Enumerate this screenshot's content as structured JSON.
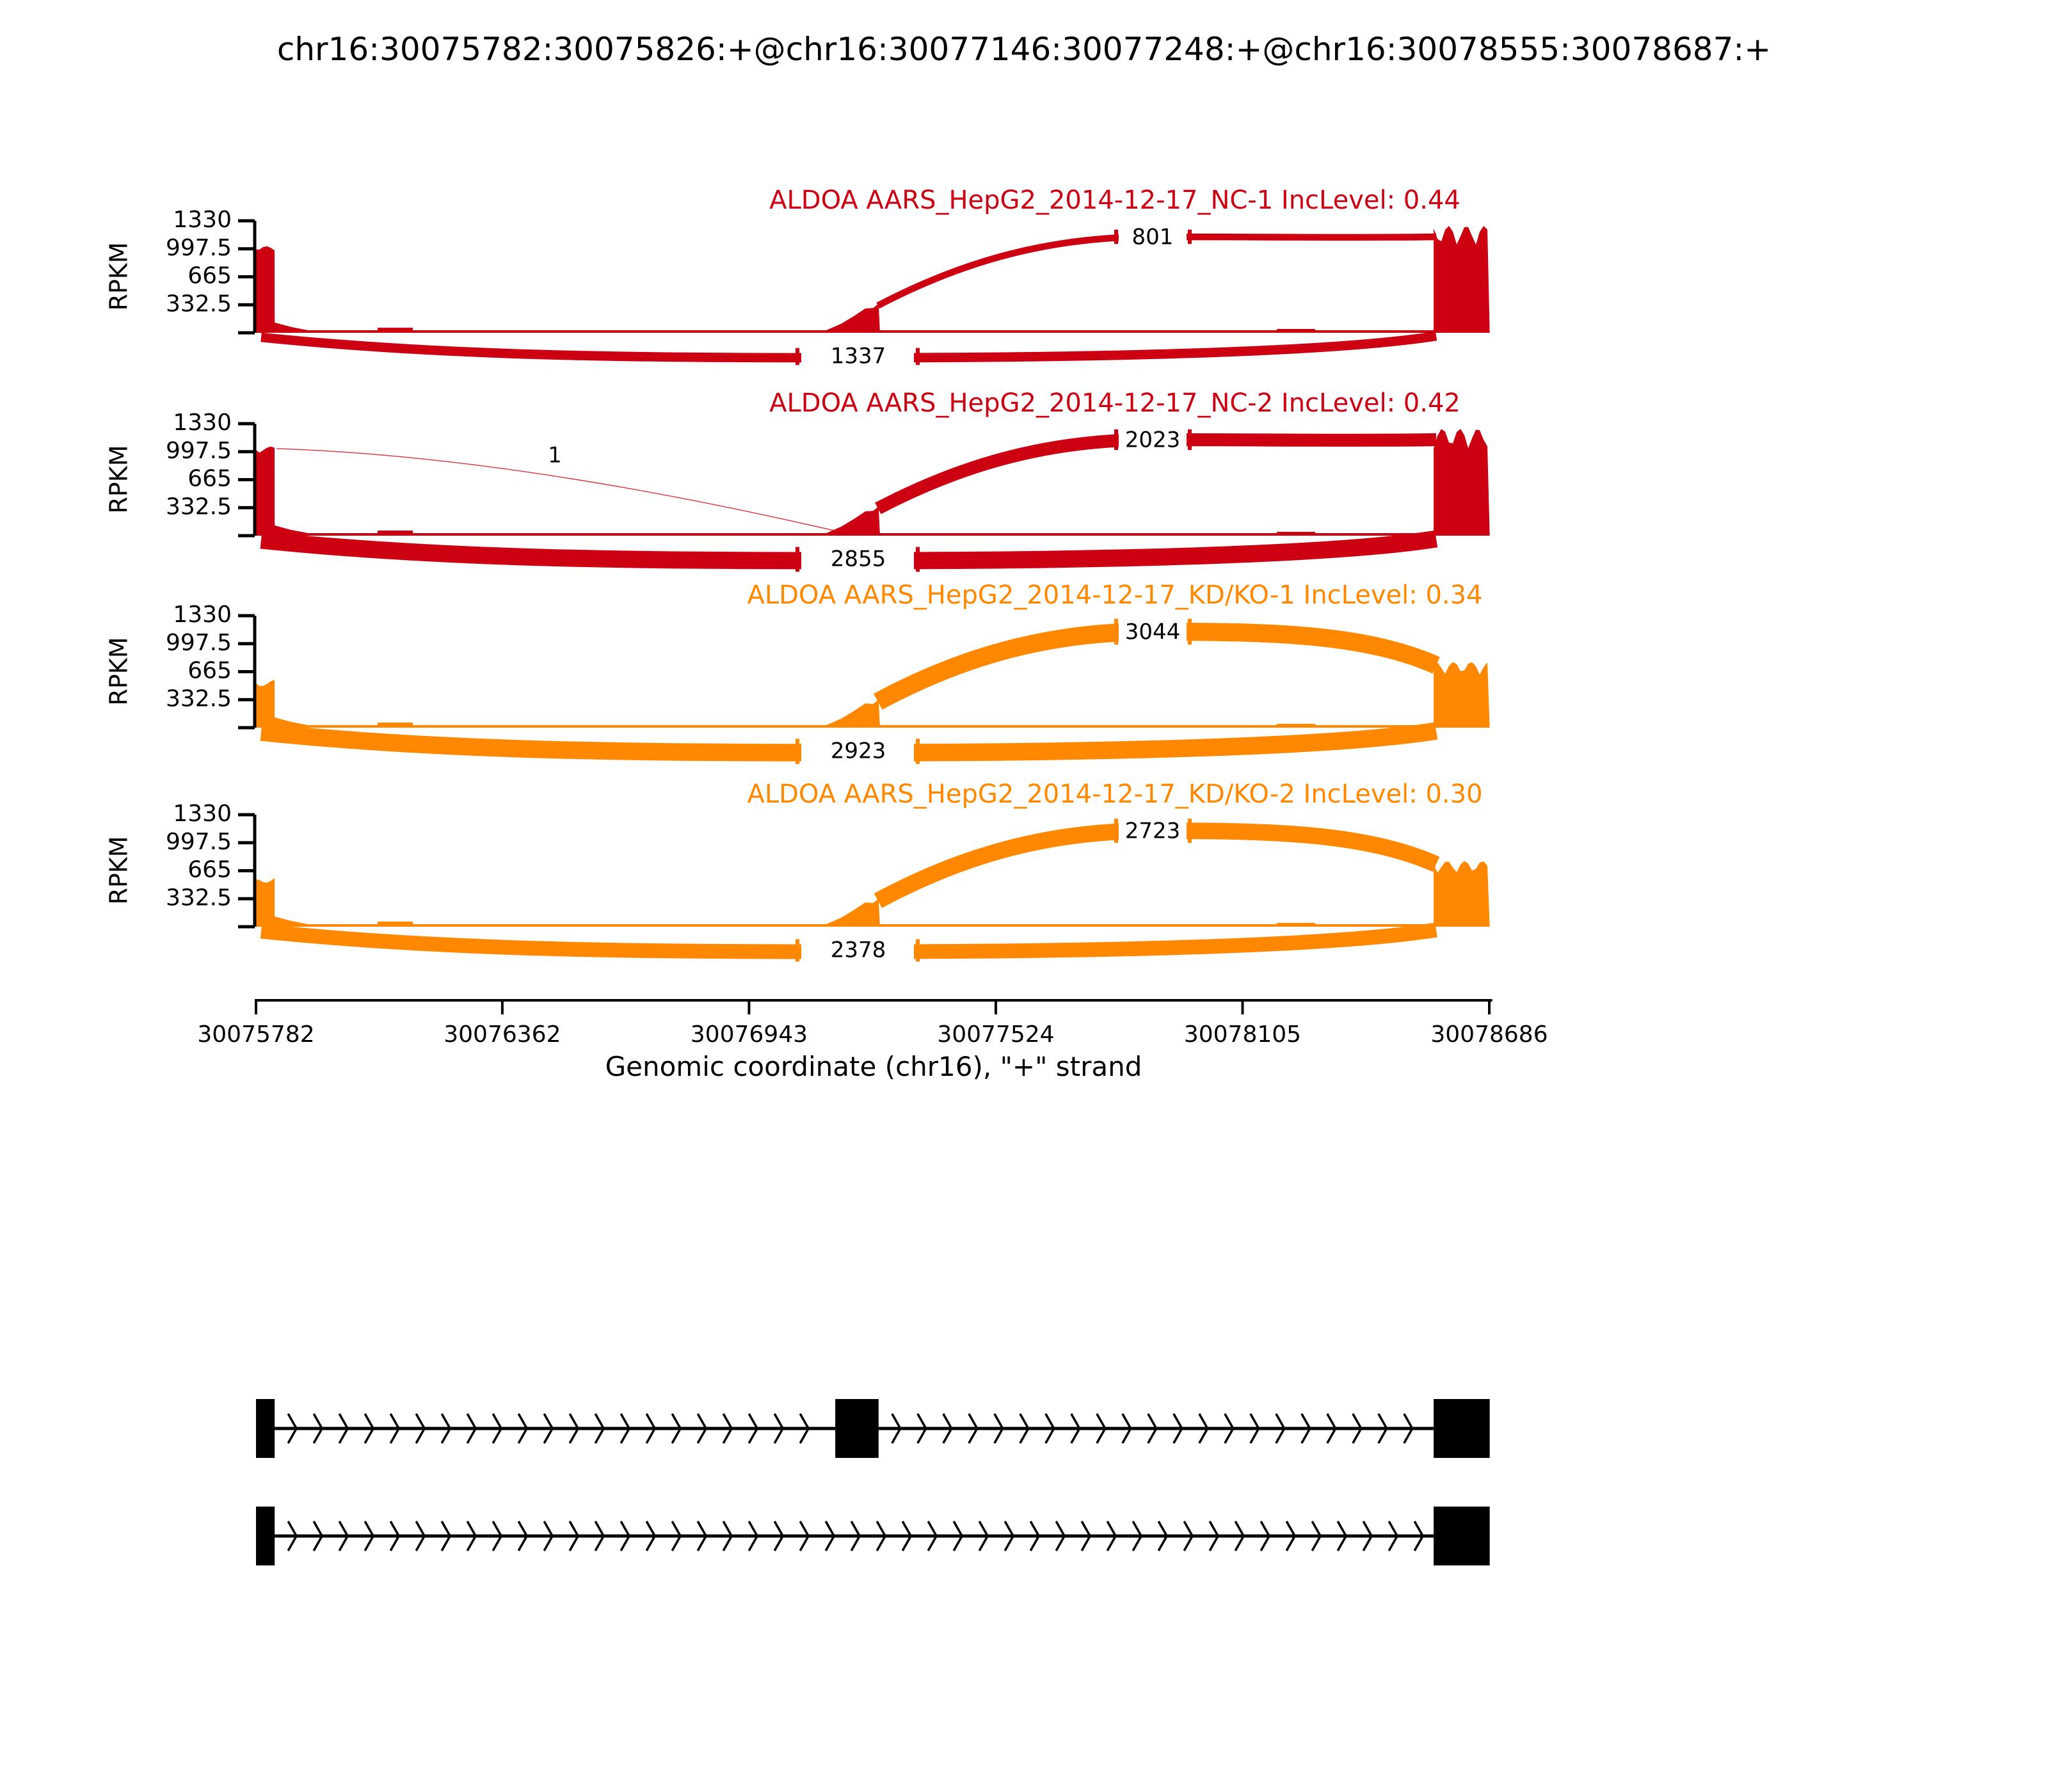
{
  "title": "chr16:30075782:30075826:+@chr16:30077146:30077248:+@chr16:30078555:30078687:+",
  "colors": {
    "nc_red": "#CC0011",
    "kd_orange": "#FF8800",
    "gene_model": "#000000",
    "label_text": "#000000"
  },
  "chart_data": {
    "type": "area",
    "subtype": "rmats-sashimi-plot",
    "title": "chr16:30075782:30075826:+@chr16:30077146:30077248:+@chr16:30078555:30078687:+",
    "xlabel": "Genomic coordinate (chr16), \"+\" strand",
    "ylabel": "RPKM",
    "xlim": [
      30075782,
      30078686
    ],
    "ylim": [
      0,
      1330
    ],
    "x_ticks": [
      30075782,
      30076362,
      30076943,
      30077524,
      30078105,
      30078686
    ],
    "y_ticks": [
      332.5,
      665,
      997.5,
      1330
    ],
    "grid": false,
    "strand": "+",
    "chromosome": "chr16",
    "exons": [
      {
        "name": "upstream_exon",
        "start": 30075782,
        "end": 30075826
      },
      {
        "name": "target_exon",
        "start": 30077146,
        "end": 30077248
      },
      {
        "name": "downstream_exon",
        "start": 30078555,
        "end": 30078687
      }
    ],
    "tracks": [
      {
        "title": "ALDOA AARS_HepG2_2014-12-17_NC-1 IncLevel: 0.44",
        "gene": "ALDOA",
        "sample": "AARS_HepG2_2014-12-17_NC-1",
        "inc_level": 0.44,
        "color": "#CC0011",
        "coverage_rpkm": {
          "upstream_exon": 990,
          "target_exon": 360,
          "downstream_exon": 1270
        },
        "junctions": [
          {
            "from": "target_exon",
            "to": "downstream_exon",
            "reads": 801,
            "arc": "top"
          },
          {
            "from": "upstream_exon",
            "to": "downstream_exon",
            "reads": 1337,
            "arc": "bottom"
          }
        ]
      },
      {
        "title": "ALDOA AARS_HepG2_2014-12-17_NC-2 IncLevel: 0.42",
        "gene": "ALDOA",
        "sample": "AARS_HepG2_2014-12-17_NC-2",
        "inc_level": 0.42,
        "color": "#CC0011",
        "coverage_rpkm": {
          "upstream_exon": 1020,
          "target_exon": 360,
          "downstream_exon": 1270
        },
        "junctions": [
          {
            "from": "target_exon",
            "to": "downstream_exon",
            "reads": 2023,
            "arc": "top"
          },
          {
            "from": "upstream_exon",
            "to": "downstream_exon",
            "reads": 2855,
            "arc": "bottom"
          },
          {
            "from": "upstream_exon",
            "to": "target_exon",
            "reads": 1,
            "arc": "top-thin"
          }
        ]
      },
      {
        "title": "ALDOA AARS_HepG2_2014-12-17_KD/KO-1 IncLevel: 0.34",
        "gene": "ALDOA",
        "sample": "AARS_HepG2_2014-12-17_KD/KO-1",
        "inc_level": 0.34,
        "color": "#FF8800",
        "coverage_rpkm": {
          "upstream_exon": 530,
          "target_exon": 320,
          "downstream_exon": 780
        },
        "junctions": [
          {
            "from": "target_exon",
            "to": "downstream_exon",
            "reads": 3044,
            "arc": "top"
          },
          {
            "from": "upstream_exon",
            "to": "downstream_exon",
            "reads": 2923,
            "arc": "bottom"
          }
        ]
      },
      {
        "title": "ALDOA AARS_HepG2_2014-12-17_KD/KO-2 IncLevel: 0.30",
        "gene": "ALDOA",
        "sample": "AARS_HepG2_2014-12-17_KD/KO-2",
        "inc_level": 0.3,
        "color": "#FF8800",
        "coverage_rpkm": {
          "upstream_exon": 560,
          "target_exon": 320,
          "downstream_exon": 780
        },
        "junctions": [
          {
            "from": "target_exon",
            "to": "downstream_exon",
            "reads": 2723,
            "arc": "top"
          },
          {
            "from": "upstream_exon",
            "to": "downstream_exon",
            "reads": 2378,
            "arc": "bottom"
          }
        ]
      }
    ],
    "gene_model": {
      "strand": "+",
      "isoforms": [
        {
          "exons": [
            "upstream_exon",
            "target_exon",
            "downstream_exon"
          ]
        },
        {
          "exons": [
            "upstream_exon",
            "downstream_exon"
          ]
        }
      ]
    }
  }
}
